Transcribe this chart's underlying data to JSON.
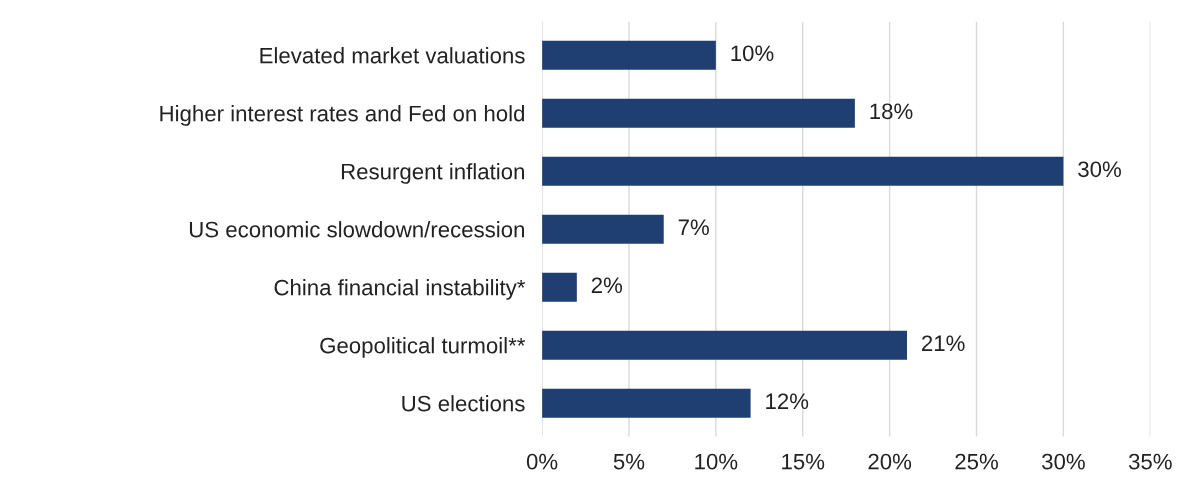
{
  "chart_data": {
    "type": "bar",
    "orientation": "horizontal",
    "categories": [
      "Elevated market valuations",
      "Higher interest rates and Fed on hold",
      "Resurgent inflation",
      "US economic slowdown/recession",
      "China financial instability*",
      "Geopolitical turmoil**",
      "US elections"
    ],
    "values": [
      10,
      18,
      30,
      7,
      2,
      21,
      12
    ],
    "value_labels": [
      "10%",
      "18%",
      "30%",
      "7%",
      "2%",
      "21%",
      "12%"
    ],
    "color": "#1f3f73",
    "xlim": [
      0,
      35
    ],
    "xticks": [
      {
        "value": 0,
        "label": "0%"
      },
      {
        "value": 5,
        "label": "5%"
      },
      {
        "value": 10,
        "label": "10%"
      },
      {
        "value": 15,
        "label": "15%"
      },
      {
        "value": 20,
        "label": "20%"
      },
      {
        "value": 25,
        "label": "25%"
      },
      {
        "value": 30,
        "label": "30%"
      },
      {
        "value": 35,
        "label": "35%"
      }
    ],
    "grid": "x",
    "legend": false
  }
}
